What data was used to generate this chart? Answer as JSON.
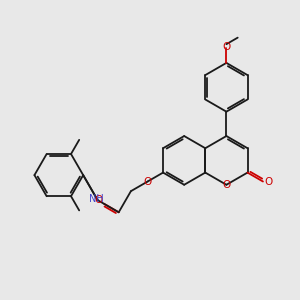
{
  "bg_color": "#e8e8e8",
  "bond_color": "#1a1a1a",
  "o_color": "#cc0000",
  "n_color": "#4444cc",
  "lw": 1.3,
  "xlim": [
    0,
    10
  ],
  "ylim": [
    0,
    10
  ]
}
